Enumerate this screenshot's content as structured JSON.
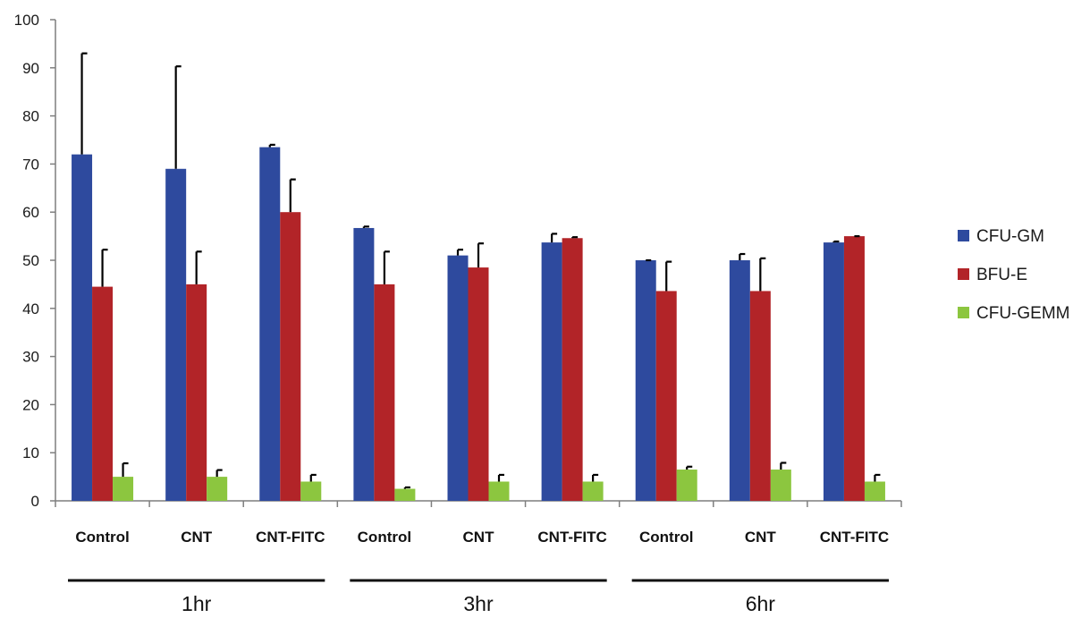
{
  "chart_data": {
    "type": "bar",
    "title": "",
    "xlabel": "",
    "ylabel": "",
    "ylim": [
      0,
      100
    ],
    "yticks": [
      0,
      10,
      20,
      30,
      40,
      50,
      60,
      70,
      80,
      90,
      100
    ],
    "categories": [
      "Control",
      "CNT",
      "CNT-FITC",
      "Control",
      "CNT",
      "CNT-FITC",
      "Control",
      "CNT",
      "CNT-FITC"
    ],
    "groups": [
      {
        "label": "1hr",
        "categories": [
          0,
          1,
          2
        ]
      },
      {
        "label": "3hr",
        "categories": [
          3,
          4,
          5
        ]
      },
      {
        "label": "6hr",
        "categories": [
          6,
          7,
          8
        ]
      }
    ],
    "series": [
      {
        "name": "CFU-GM",
        "color": "#2E4A9E",
        "values": [
          72,
          69,
          73.5,
          56.7,
          51,
          53.7,
          50,
          50,
          53.7
        ],
        "errors": [
          21,
          21.3,
          0.5,
          0.3,
          1.2,
          1.8,
          0,
          1.3,
          0.2
        ]
      },
      {
        "name": "BFU-E",
        "color": "#B22428",
        "values": [
          44.5,
          45,
          60,
          45,
          48.5,
          54.6,
          43.6,
          43.6,
          55
        ],
        "errors": [
          7.7,
          6.8,
          6.8,
          6.8,
          5,
          0.2,
          6.1,
          6.8,
          0
        ]
      },
      {
        "name": "CFU-GEMM",
        "color": "#8CC63F",
        "values": [
          5,
          5,
          4,
          2.5,
          4,
          4,
          6.5,
          6.5,
          4
        ],
        "errors": [
          2.8,
          1.4,
          1.4,
          0.3,
          1.4,
          1.4,
          0.6,
          1.4,
          1.4
        ]
      }
    ],
    "legend_position": "right",
    "grid": false
  }
}
